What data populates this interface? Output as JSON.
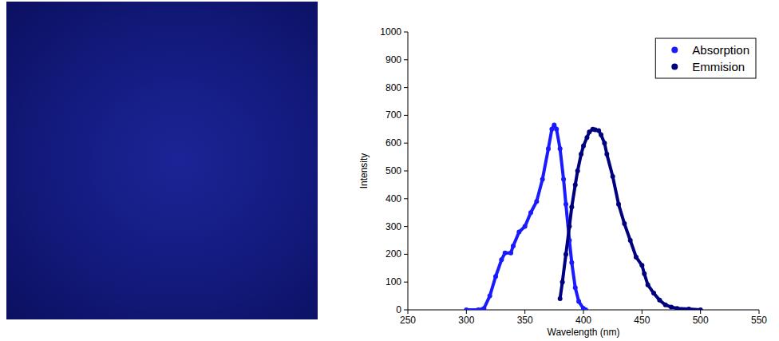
{
  "chart_data": {
    "type": "line",
    "x_label": "Wavelength (nm)",
    "y_label": "Intensity",
    "xlim": [
      250,
      550
    ],
    "xticks": [
      250,
      300,
      350,
      400,
      450,
      500,
      550
    ],
    "ylim": [
      0,
      1000
    ],
    "yticks": [
      0,
      100,
      200,
      300,
      400,
      500,
      600,
      700,
      800,
      900,
      1000
    ],
    "grid": false,
    "legend": "upper right",
    "series": [
      {
        "name": "Absorption",
        "color": "#1a1aff",
        "marker": "circle",
        "line_style": "solid",
        "x": [
          300,
          310,
          315,
          320,
          325,
          330,
          333,
          338,
          340,
          345,
          350,
          355,
          360,
          365,
          370,
          373,
          375,
          377,
          380,
          383,
          385,
          388,
          390,
          393,
          396,
          400,
          402
        ],
        "values": [
          0,
          0,
          5,
          50,
          120,
          180,
          205,
          205,
          230,
          280,
          300,
          350,
          390,
          470,
          580,
          650,
          665,
          650,
          580,
          470,
          380,
          250,
          170,
          80,
          30,
          5,
          0
        ]
      },
      {
        "name": "Emmision",
        "color": "#00007f",
        "marker": "circle",
        "line_style": "solid",
        "x": [
          380,
          382,
          385,
          388,
          390,
          393,
          395,
          398,
          400,
          403,
          405,
          408,
          410,
          413,
          415,
          418,
          420,
          425,
          430,
          435,
          440,
          445,
          450,
          452,
          455,
          460,
          465,
          470,
          475,
          480,
          490,
          500
        ],
        "values": [
          40,
          100,
          200,
          300,
          370,
          450,
          500,
          560,
          590,
          620,
          640,
          650,
          648,
          645,
          630,
          600,
          560,
          480,
          380,
          310,
          250,
          190,
          160,
          130,
          90,
          60,
          35,
          18,
          10,
          5,
          3,
          0
        ]
      }
    ]
  }
}
